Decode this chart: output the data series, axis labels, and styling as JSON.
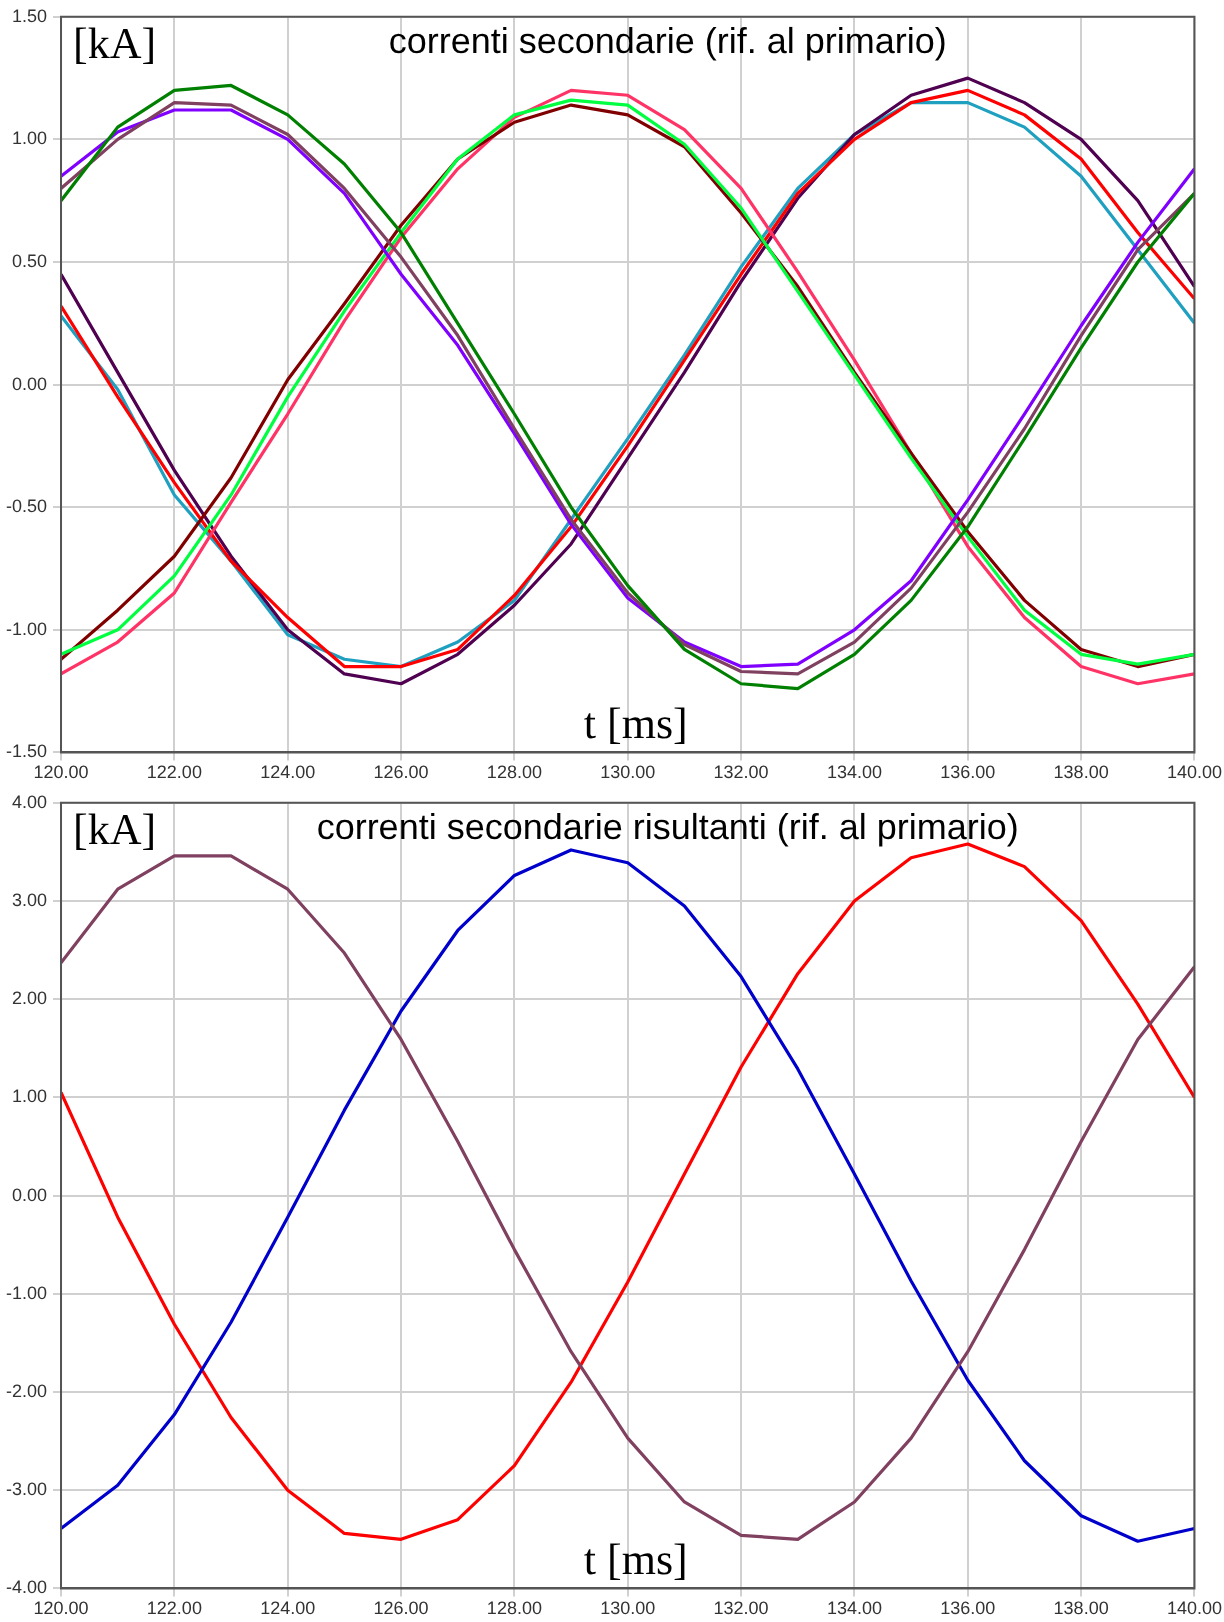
{
  "chart_data": [
    {
      "type": "line",
      "title": "correnti secondarie (rif. al primario)",
      "xlabel": "t [ms]",
      "ylabel": "[kA]",
      "x": [
        120,
        121,
        122,
        123,
        124,
        125,
        126,
        127,
        128,
        129,
        130,
        131,
        132,
        133,
        134,
        135,
        136,
        137,
        138,
        139,
        140
      ],
      "xlim": [
        120,
        140
      ],
      "ylim": [
        -1.5,
        1.5
      ],
      "xticks": [
        {
          "value": 120,
          "label": "120.00"
        },
        {
          "value": 122,
          "label": "122.00"
        },
        {
          "value": 124,
          "label": "124.00"
        },
        {
          "value": 126,
          "label": "126.00"
        },
        {
          "value": 128,
          "label": "128.00"
        },
        {
          "value": 130,
          "label": "130.00"
        },
        {
          "value": 132,
          "label": "132.00"
        },
        {
          "value": 134,
          "label": "134.00"
        },
        {
          "value": 136,
          "label": "136.00"
        },
        {
          "value": 138,
          "label": "138.00"
        },
        {
          "value": 140,
          "label": "140.00"
        }
      ],
      "yticks": [
        {
          "value": -1.5,
          "label": "-1.50"
        },
        {
          "value": -1,
          "label": "-1.00"
        },
        {
          "value": -0.5,
          "label": "-0.50"
        },
        {
          "value": 0,
          "label": "0.00"
        },
        {
          "value": 0.5,
          "label": "0.50"
        },
        {
          "value": 1,
          "label": "1.00"
        },
        {
          "value": 1.5,
          "label": "1.50"
        }
      ],
      "grid": true,
      "legend": false,
      "marker": "none",
      "line_style": "solid",
      "series": [
        {
          "color": "#008000",
          "values": [
            0.75,
            1.05,
            1.2,
            1.22,
            1.1,
            0.9,
            0.62,
            0.25,
            -0.12,
            -0.5,
            -0.82,
            -1.08,
            -1.22,
            -1.24,
            -1.1,
            -0.88,
            -0.58,
            -0.22,
            0.15,
            0.5,
            0.78
          ]
        },
        {
          "color": "#804060",
          "values": [
            0.8,
            1.0,
            1.15,
            1.14,
            1.02,
            0.8,
            0.52,
            0.2,
            -0.18,
            -0.55,
            -0.85,
            -1.06,
            -1.17,
            -1.18,
            -1.05,
            -0.83,
            -0.52,
            -0.18,
            0.2,
            0.55,
            0.78
          ]
        },
        {
          "color": "#8000ff",
          "values": [
            0.85,
            1.03,
            1.12,
            1.12,
            1.0,
            0.78,
            0.45,
            0.16,
            -0.2,
            -0.57,
            -0.87,
            -1.05,
            -1.15,
            -1.14,
            -1.0,
            -0.8,
            -0.47,
            -0.12,
            0.24,
            0.58,
            0.88
          ]
        },
        {
          "color": "#00ff40",
          "values": [
            -1.1,
            -1.0,
            -0.78,
            -0.45,
            -0.05,
            0.3,
            0.62,
            0.92,
            1.1,
            1.16,
            1.14,
            0.98,
            0.72,
            0.38,
            0.04,
            -0.3,
            -0.62,
            -0.92,
            -1.1,
            -1.14,
            -1.1
          ]
        },
        {
          "color": "#800000",
          "values": [
            -1.12,
            -0.92,
            -0.7,
            -0.38,
            0.02,
            0.33,
            0.65,
            0.92,
            1.07,
            1.14,
            1.1,
            0.97,
            0.7,
            0.4,
            0.05,
            -0.28,
            -0.6,
            -0.88,
            -1.08,
            -1.15,
            -1.1
          ]
        },
        {
          "color": "#ff3366",
          "values": [
            -1.18,
            -1.05,
            -0.85,
            -0.48,
            -0.12,
            0.26,
            0.6,
            0.88,
            1.09,
            1.2,
            1.18,
            1.04,
            0.8,
            0.46,
            0.1,
            -0.28,
            -0.66,
            -0.95,
            -1.15,
            -1.22,
            -1.18
          ]
        },
        {
          "color": "#ff0000",
          "values": [
            0.32,
            -0.05,
            -0.4,
            -0.72,
            -0.95,
            -1.15,
            -1.15,
            -1.08,
            -0.86,
            -0.58,
            -0.25,
            0.1,
            0.45,
            0.78,
            1.0,
            1.15,
            1.2,
            1.1,
            0.92,
            0.62,
            0.35
          ]
        },
        {
          "color": "#500050",
          "values": [
            0.45,
            0.05,
            -0.35,
            -0.7,
            -1.0,
            -1.18,
            -1.22,
            -1.1,
            -0.9,
            -0.65,
            -0.3,
            0.05,
            0.42,
            0.76,
            1.02,
            1.18,
            1.25,
            1.15,
            1.0,
            0.75,
            0.4
          ]
        },
        {
          "color": "#20a0c0",
          "values": [
            0.28,
            -0.02,
            -0.45,
            -0.72,
            -1.02,
            -1.12,
            -1.15,
            -1.05,
            -0.88,
            -0.55,
            -0.22,
            0.12,
            0.48,
            0.8,
            1.02,
            1.15,
            1.15,
            1.05,
            0.85,
            0.55,
            0.25
          ]
        }
      ]
    },
    {
      "type": "line",
      "title": "correnti secondarie risultanti (rif. al primario)",
      "xlabel": "t [ms]",
      "ylabel": "[kA]",
      "x": [
        120,
        121,
        122,
        123,
        124,
        125,
        126,
        127,
        128,
        129,
        130,
        131,
        132,
        133,
        134,
        135,
        136,
        137,
        138,
        139,
        140
      ],
      "xlim": [
        120,
        140
      ],
      "ylim": [
        -4,
        4
      ],
      "xticks": [
        {
          "value": 120,
          "label": "120.00"
        },
        {
          "value": 122,
          "label": "122.00"
        },
        {
          "value": 124,
          "label": "124.00"
        },
        {
          "value": 126,
          "label": "126.00"
        },
        {
          "value": 128,
          "label": "128.00"
        },
        {
          "value": 130,
          "label": "130.00"
        },
        {
          "value": 132,
          "label": "132.00"
        },
        {
          "value": 134,
          "label": "134.00"
        },
        {
          "value": 136,
          "label": "136.00"
        },
        {
          "value": 138,
          "label": "138.00"
        },
        {
          "value": 140,
          "label": "140.00"
        }
      ],
      "yticks": [
        {
          "value": -4,
          "label": "-4.00"
        },
        {
          "value": -3,
          "label": "-3.00"
        },
        {
          "value": -2,
          "label": "-2.00"
        },
        {
          "value": -1,
          "label": "-1.00"
        },
        {
          "value": 0,
          "label": "0.00"
        },
        {
          "value": 1,
          "label": "1.00"
        },
        {
          "value": 2,
          "label": "2.00"
        },
        {
          "value": 3,
          "label": "3.00"
        },
        {
          "value": 4,
          "label": "4.00"
        }
      ],
      "grid": true,
      "legend": false,
      "marker": "none",
      "line_style": "solid",
      "series": [
        {
          "color": "#804060",
          "values": [
            2.37,
            3.12,
            3.46,
            3.46,
            3.12,
            2.47,
            1.59,
            0.55,
            -0.55,
            -1.59,
            -2.47,
            -3.12,
            -3.46,
            -3.5,
            -3.12,
            -2.47,
            -1.59,
            -0.55,
            0.55,
            1.59,
            2.33
          ]
        },
        {
          "color": "#0000cc",
          "values": [
            -3.39,
            -2.95,
            -2.23,
            -1.29,
            -0.22,
            0.87,
            1.88,
            2.7,
            3.26,
            3.52,
            3.39,
            2.95,
            2.23,
            1.29,
            0.22,
            -0.87,
            -1.88,
            -2.7,
            -3.26,
            -3.52,
            -3.39
          ]
        },
        {
          "color": "#ff0000",
          "values": [
            1.05,
            -0.22,
            -1.31,
            -2.26,
            -3.0,
            -3.44,
            -3.5,
            -3.3,
            -2.75,
            -1.9,
            -0.88,
            0.22,
            1.31,
            2.26,
            3.0,
            3.44,
            3.58,
            3.35,
            2.8,
            1.95,
            1.0
          ]
        }
      ]
    }
  ]
}
